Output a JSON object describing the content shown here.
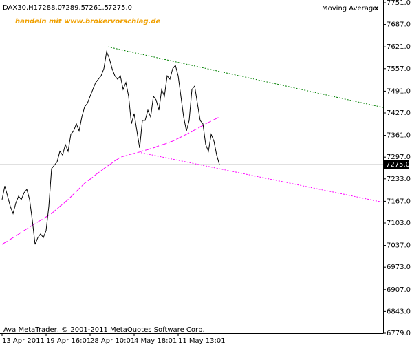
{
  "chart_data": {
    "type": "line",
    "symbol": "DAX30,H1",
    "ohlc": [
      {
        "value": 7288.0,
        "label": "7288.0"
      },
      {
        "value": 7289.5,
        "label": "7289.5"
      },
      {
        "value": 7261.5,
        "label": "7261.5"
      },
      {
        "value": 7275.0,
        "label": "7275.0"
      }
    ],
    "indicator": "Moving Average",
    "close_button": "x",
    "watermark": "handeln mit www.brokervorschlag.de",
    "footer": "Ava MetaTrader, © 2001-2011 MetaQuotes Software Corp.",
    "last_price": {
      "value": 7275.0,
      "label": "7275.0"
    },
    "categories": [
      "13 Apr 2011",
      null,
      null,
      null,
      null,
      null,
      null,
      null,
      null,
      null,
      null,
      null,
      null,
      null,
      null,
      null,
      "19 Apr 16:01",
      null,
      null,
      null,
      null,
      null,
      null,
      null,
      null,
      null,
      null,
      null,
      null,
      null,
      null,
      null,
      "28 Apr 10:01",
      null,
      null,
      null,
      null,
      null,
      null,
      null,
      null,
      null,
      null,
      null,
      null,
      null,
      null,
      null,
      "4 May 18:01",
      null,
      null,
      null,
      null,
      null,
      null,
      null,
      null,
      null,
      null,
      null,
      null,
      null,
      null,
      null,
      "11 May 13:01",
      null,
      null,
      null,
      null,
      null,
      null,
      null,
      null,
      null,
      null,
      null,
      null,
      null,
      null,
      null
    ],
    "series": [
      {
        "name": "DAX30,H1",
        "color": "#000000",
        "style": "solid",
        "values": [
          7172,
          7212,
          7182,
          7152,
          7131,
          7162,
          7182,
          7172,
          7192,
          7202,
          7172,
          7111,
          7040,
          7060,
          7071,
          7060,
          7081,
          7152,
          7263,
          7273,
          7283,
          7314,
          7303,
          7334,
          7314,
          7364,
          7374,
          7395,
          7374,
          7415,
          7445,
          7455,
          7476,
          7496,
          7516,
          7526,
          7536,
          7557,
          7607,
          7587,
          7557,
          7536,
          7526,
          7536,
          7496,
          7516,
          7476,
          7395,
          7425,
          7374,
          7324,
          7405,
          7405,
          7435,
          7415,
          7476,
          7465,
          7435,
          7496,
          7476,
          7536,
          7526,
          7557,
          7567,
          7536,
          7476,
          7415,
          7374,
          7405,
          7496,
          7506,
          7455,
          7405,
          7395,
          7334,
          7314,
          7364,
          7344,
          7303,
          7275
        ]
      },
      {
        "name": "Moving Average",
        "color": "#ff00ff",
        "style": "dashed",
        "values": [
          7040,
          7045,
          7050,
          7055,
          7060,
          7065,
          7070,
          7076,
          7081,
          7086,
          7091,
          7096,
          7101,
          7106,
          7111,
          7116,
          7121,
          7126,
          7131,
          7138,
          7145,
          7152,
          7158,
          7165,
          7172,
          7180,
          7188,
          7196,
          7204,
          7212,
          7220,
          7226,
          7232,
          7238,
          7245,
          7251,
          7257,
          7263,
          7269,
          7274,
          7280,
          7286,
          7291,
          7297,
          7299,
          7301,
          7304,
          7306,
          7308,
          7310,
          7312,
          7315,
          7317,
          7319,
          7322,
          7324,
          7327,
          7330,
          7333,
          7335,
          7338,
          7341,
          7344,
          7348,
          7352,
          7356,
          7360,
          7364,
          7368,
          7372,
          7377,
          7381,
          7386,
          7390,
          7395,
          7399,
          7403,
          7407,
          7411,
          7415
        ]
      }
    ],
    "trendlines": [
      {
        "color": "#008000",
        "style": "dotted",
        "points": [
          [
            38.5,
            7621
          ],
          [
            138.5,
            7443
          ]
        ]
      },
      {
        "color": "#ff00ff",
        "style": "dotted",
        "points": [
          [
            50.5,
            7310
          ],
          [
            138.5,
            7164
          ]
        ]
      }
    ],
    "xlim": [
      -0.75,
      138.5
    ],
    "ylim": [
      6779,
      7751
    ],
    "yticks": [
      {
        "value": 7751,
        "label": "7751.0"
      },
      {
        "value": 7687,
        "label": "7687.0"
      },
      {
        "value": 7621,
        "label": "7621.0"
      },
      {
        "value": 7557,
        "label": "7557.0"
      },
      {
        "value": 7491,
        "label": "7491.0"
      },
      {
        "value": 7427,
        "label": "7427.0"
      },
      {
        "value": 7361,
        "label": "7361.0"
      },
      {
        "value": 7297,
        "label": "7297.0"
      },
      {
        "value": 7233,
        "label": "7233.0"
      },
      {
        "value": 7167,
        "label": "7167.0"
      },
      {
        "value": 7103,
        "label": "7103.0"
      },
      {
        "value": 7037,
        "label": "7037.0"
      },
      {
        "value": 6973,
        "label": "6973.0"
      },
      {
        "value": 6907,
        "label": "6907.0"
      },
      {
        "value": 6843,
        "label": "6843.0"
      },
      {
        "value": 6779,
        "label": "6779.0"
      }
    ],
    "grid": false
  }
}
